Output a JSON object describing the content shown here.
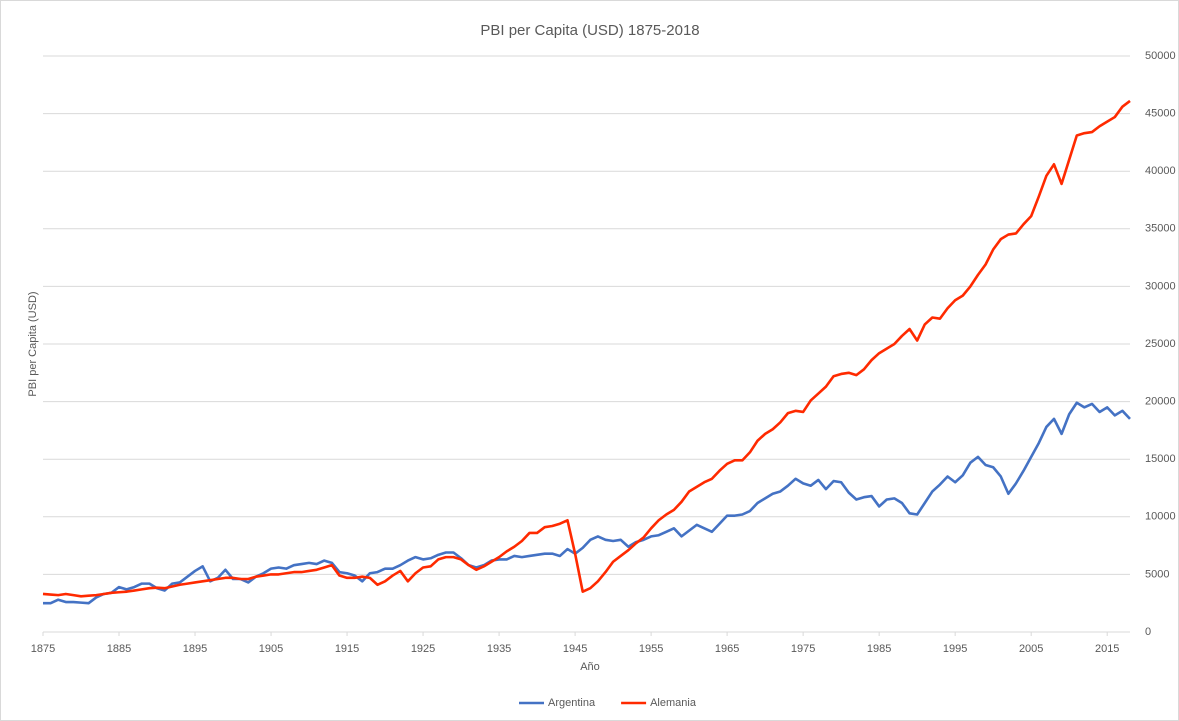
{
  "chart_data": {
    "type": "line",
    "title": "PBI per Capita (USD) 1875-2018",
    "x_label": "Año",
    "y_label": "PBI per Capita (USD)",
    "yaxis_position": "right",
    "grid": true,
    "legend": "bottom",
    "x": [
      1875,
      1876,
      1877,
      1878,
      1879,
      1880,
      1881,
      1882,
      1883,
      1884,
      1885,
      1886,
      1887,
      1888,
      1889,
      1890,
      1891,
      1892,
      1893,
      1894,
      1895,
      1896,
      1897,
      1898,
      1899,
      1900,
      1901,
      1902,
      1903,
      1904,
      1905,
      1906,
      1907,
      1908,
      1909,
      1910,
      1911,
      1912,
      1913,
      1914,
      1915,
      1916,
      1917,
      1918,
      1919,
      1920,
      1921,
      1922,
      1923,
      1924,
      1925,
      1926,
      1927,
      1928,
      1929,
      1930,
      1931,
      1932,
      1933,
      1934,
      1935,
      1936,
      1937,
      1938,
      1939,
      1940,
      1941,
      1942,
      1943,
      1944,
      1945,
      1946,
      1947,
      1948,
      1949,
      1950,
      1951,
      1952,
      1953,
      1954,
      1955,
      1956,
      1957,
      1958,
      1959,
      1960,
      1961,
      1962,
      1963,
      1964,
      1965,
      1966,
      1967,
      1968,
      1969,
      1970,
      1971,
      1972,
      1973,
      1974,
      1975,
      1976,
      1977,
      1978,
      1979,
      1980,
      1981,
      1982,
      1983,
      1984,
      1985,
      1986,
      1987,
      1988,
      1989,
      1990,
      1991,
      1992,
      1993,
      1994,
      1995,
      1996,
      1997,
      1998,
      1999,
      2000,
      2001,
      2002,
      2003,
      2004,
      2005,
      2006,
      2007,
      2008,
      2009,
      2010,
      2011,
      2012,
      2013,
      2014,
      2015,
      2016,
      2017,
      2018
    ],
    "xlim": [
      1875,
      2018
    ],
    "xticks": [
      1875,
      1885,
      1895,
      1905,
      1915,
      1925,
      1935,
      1945,
      1955,
      1965,
      1975,
      1985,
      1995,
      2005,
      2015
    ],
    "ylim": [
      0,
      50000
    ],
    "yticks": [
      0,
      5000,
      10000,
      15000,
      20000,
      25000,
      30000,
      35000,
      40000,
      45000,
      50000
    ],
    "series": [
      {
        "name": "Argentina",
        "color": "#4472c4",
        "values": [
          2500,
          2500,
          2800,
          2600,
          2600,
          2550,
          2500,
          3000,
          3300,
          3400,
          3900,
          3700,
          3900,
          4200,
          4200,
          3800,
          3600,
          4200,
          4300,
          4800,
          5300,
          5700,
          4400,
          4700,
          5400,
          4600,
          4600,
          4300,
          4800,
          5100,
          5500,
          5600,
          5500,
          5800,
          5900,
          6000,
          5900,
          6200,
          6000,
          5200,
          5100,
          4900,
          4400,
          5100,
          5200,
          5500,
          5500,
          5800,
          6200,
          6500,
          6300,
          6400,
          6700,
          6900,
          6900,
          6400,
          5800,
          5600,
          5800,
          6200,
          6300,
          6300,
          6600,
          6500,
          6600,
          6700,
          6800,
          6800,
          6600,
          7200,
          6800,
          7300,
          8000,
          8300,
          8000,
          7900,
          8000,
          7400,
          7800,
          8000,
          8300,
          8400,
          8700,
          9000,
          8300,
          8800,
          9300,
          9000,
          8700,
          9400,
          10100,
          10100,
          10200,
          10500,
          11200,
          11600,
          12000,
          12200,
          12700,
          13300,
          12900,
          12700,
          13200,
          12400,
          13100,
          13000,
          12100,
          11500,
          11700,
          11800,
          10900,
          11500,
          11600,
          11200,
          10300,
          10200,
          11200,
          12200,
          12800,
          13500,
          13000,
          13600,
          14700,
          15200,
          14500,
          14300,
          13500,
          12000,
          12900,
          14000,
          15200,
          16400,
          17800,
          18500,
          17200,
          18900,
          19900,
          19500,
          19800,
          19100,
          19500,
          18800,
          19200,
          18500
        ]
      },
      {
        "name": "Alemania",
        "color": "#ff2a00",
        "values": [
          3300,
          3250,
          3200,
          3300,
          3200,
          3100,
          3150,
          3200,
          3300,
          3400,
          3450,
          3500,
          3600,
          3700,
          3800,
          3850,
          3800,
          3950,
          4100,
          4200,
          4300,
          4400,
          4500,
          4600,
          4700,
          4700,
          4600,
          4600,
          4800,
          4900,
          5000,
          5000,
          5100,
          5200,
          5200,
          5300,
          5400,
          5600,
          5800,
          4900,
          4700,
          4700,
          4800,
          4700,
          4100,
          4400,
          4900,
          5300,
          4400,
          5100,
          5600,
          5700,
          6300,
          6500,
          6500,
          6300,
          5800,
          5400,
          5700,
          6100,
          6500,
          7000,
          7400,
          7900,
          8600,
          8600,
          9100,
          9200,
          9400,
          9700,
          6800,
          3500,
          3800,
          4400,
          5200,
          6100,
          6600,
          7100,
          7700,
          8200,
          9000,
          9700,
          10200,
          10600,
          11300,
          12200,
          12600,
          13000,
          13300,
          14000,
          14600,
          14900,
          14900,
          15600,
          16600,
          17200,
          17600,
          18200,
          19000,
          19200,
          19100,
          20100,
          20700,
          21300,
          22200,
          22400,
          22500,
          22300,
          22800,
          23600,
          24200,
          24600,
          25000,
          25700,
          26300,
          25300,
          26700,
          27300,
          27200,
          28100,
          28800,
          29200,
          30000,
          31000,
          31900,
          33200,
          34100,
          34500,
          34600,
          35400,
          36100,
          37800,
          39600,
          40600,
          38900,
          41000,
          43100,
          43300,
          43400,
          43900,
          44300,
          44700,
          45600,
          46100
        ]
      }
    ]
  }
}
